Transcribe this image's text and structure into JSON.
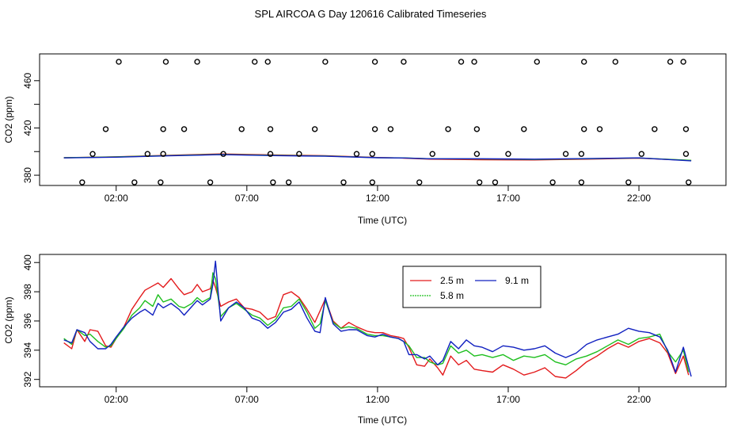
{
  "title": "SPL AIRCOA G  Day 120616  Calibrated Timeseries",
  "chart_data": [
    {
      "type": "scatter",
      "name": "top-panel",
      "xlabel": "Time (UTC)",
      "ylabel": "CO2 (ppm)",
      "xlim": [
        -0.9,
        25.3
      ],
      "ylim": [
        372,
        482
      ],
      "xticks": [
        2,
        7,
        12,
        17,
        22
      ],
      "xtick_labels": [
        "02:00",
        "07:00",
        "12:00",
        "17:00",
        "22:00"
      ],
      "yticks": [
        380,
        420,
        460
      ],
      "yticks_minor": [
        400,
        440
      ],
      "ytick_labels": [
        "380",
        "420",
        "460"
      ],
      "flag_points": [
        {
          "x": 0.7,
          "y": 374
        },
        {
          "x": 1.1,
          "y": 398
        },
        {
          "x": 1.6,
          "y": 419
        },
        {
          "x": 2.1,
          "y": 476
        },
        {
          "x": 2.7,
          "y": 374
        },
        {
          "x": 3.2,
          "y": 398
        },
        {
          "x": 3.7,
          "y": 374
        },
        {
          "x": 3.8,
          "y": 419
        },
        {
          "x": 3.9,
          "y": 476
        },
        {
          "x": 3.8,
          "y": 398
        },
        {
          "x": 4.6,
          "y": 419
        },
        {
          "x": 5.1,
          "y": 476
        },
        {
          "x": 5.6,
          "y": 374
        },
        {
          "x": 6.1,
          "y": 398
        },
        {
          "x": 6.8,
          "y": 419
        },
        {
          "x": 7.3,
          "y": 476
        },
        {
          "x": 7.8,
          "y": 476
        },
        {
          "x": 7.9,
          "y": 419
        },
        {
          "x": 7.9,
          "y": 398
        },
        {
          "x": 8.0,
          "y": 374
        },
        {
          "x": 8.6,
          "y": 374
        },
        {
          "x": 9.0,
          "y": 398
        },
        {
          "x": 9.6,
          "y": 419
        },
        {
          "x": 10.0,
          "y": 476
        },
        {
          "x": 10.7,
          "y": 374
        },
        {
          "x": 11.2,
          "y": 398
        },
        {
          "x": 11.8,
          "y": 374
        },
        {
          "x": 11.8,
          "y": 398
        },
        {
          "x": 11.9,
          "y": 419
        },
        {
          "x": 11.9,
          "y": 476
        },
        {
          "x": 12.5,
          "y": 419
        },
        {
          "x": 13.0,
          "y": 476
        },
        {
          "x": 13.6,
          "y": 374
        },
        {
          "x": 14.1,
          "y": 398
        },
        {
          "x": 14.7,
          "y": 419
        },
        {
          "x": 15.2,
          "y": 476
        },
        {
          "x": 15.7,
          "y": 476
        },
        {
          "x": 15.8,
          "y": 419
        },
        {
          "x": 15.8,
          "y": 398
        },
        {
          "x": 15.9,
          "y": 374
        },
        {
          "x": 16.5,
          "y": 374
        },
        {
          "x": 17.0,
          "y": 398
        },
        {
          "x": 17.6,
          "y": 419
        },
        {
          "x": 18.1,
          "y": 476
        },
        {
          "x": 18.7,
          "y": 374
        },
        {
          "x": 19.2,
          "y": 398
        },
        {
          "x": 19.8,
          "y": 374
        },
        {
          "x": 19.8,
          "y": 398
        },
        {
          "x": 19.9,
          "y": 419
        },
        {
          "x": 19.9,
          "y": 476
        },
        {
          "x": 20.5,
          "y": 419
        },
        {
          "x": 21.1,
          "y": 476
        },
        {
          "x": 21.6,
          "y": 374
        },
        {
          "x": 22.1,
          "y": 398
        },
        {
          "x": 22.6,
          "y": 419
        },
        {
          "x": 23.2,
          "y": 476
        },
        {
          "x": 23.7,
          "y": 476
        },
        {
          "x": 23.8,
          "y": 419
        },
        {
          "x": 23.8,
          "y": 398
        },
        {
          "x": 23.9,
          "y": 374
        }
      ],
      "series": [
        {
          "name": "2.5 m",
          "color": "#e31a1c",
          "x": [
            0,
            2,
            4,
            6,
            8,
            10,
            12,
            13,
            14,
            16,
            18,
            20,
            22,
            24
          ],
          "y": [
            394.8,
            395.6,
            396.9,
            398.0,
            397.2,
            396.5,
            395.0,
            394.5,
            393.6,
            393.1,
            392.9,
            393.6,
            394.5,
            392.5
          ]
        },
        {
          "name": "5.8 m",
          "color": "#1fbf1f",
          "x": [
            0,
            2,
            4,
            6,
            8,
            10,
            12,
            13,
            14,
            16,
            18,
            20,
            22,
            24
          ],
          "y": [
            394.8,
            395.5,
            396.6,
            397.6,
            396.8,
            396.3,
            394.9,
            394.7,
            393.9,
            393.7,
            393.3,
            393.9,
            394.6,
            392.6
          ]
        },
        {
          "name": "9.1 m",
          "color": "#1020c0",
          "x": [
            0,
            2,
            4,
            6,
            8,
            10,
            12,
            13,
            14,
            16,
            18,
            20,
            22,
            24
          ],
          "y": [
            394.7,
            395.3,
            396.4,
            397.4,
            396.6,
            396.1,
            394.8,
            394.6,
            393.9,
            393.9,
            393.6,
            394.1,
            394.7,
            392.2
          ]
        }
      ]
    },
    {
      "type": "line",
      "name": "bottom-panel",
      "xlabel": "Time (UTC)",
      "ylabel": "CO2 (ppm)",
      "xlim": [
        -0.9,
        25.3
      ],
      "ylim": [
        391.55,
        400.5
      ],
      "xticks": [
        2,
        7,
        12,
        17,
        22
      ],
      "xtick_labels": [
        "02:00",
        "07:00",
        "12:00",
        "17:00",
        "22:00"
      ],
      "yticks": [
        392,
        394,
        396,
        398,
        400
      ],
      "ytick_labels": [
        "392",
        "394",
        "396",
        "398",
        "400"
      ],
      "legend": {
        "position": "top-center",
        "entries": [
          {
            "label": "2.5 m",
            "color": "#e31a1c"
          },
          {
            "label": "9.1 m",
            "color": "#1020c0"
          },
          {
            "label": "5.8 m",
            "color": "#1fbf1f"
          }
        ]
      },
      "series": [
        {
          "name": "2.5 m",
          "color": "#e31a1c",
          "x": [
            0.0,
            0.3,
            0.5,
            0.8,
            1.0,
            1.3,
            1.6,
            1.8,
            2.0,
            2.3,
            2.6,
            2.9,
            3.1,
            3.4,
            3.6,
            3.8,
            4.1,
            4.4,
            4.6,
            4.9,
            5.1,
            5.3,
            5.6,
            5.7,
            5.8,
            6.0,
            6.3,
            6.6,
            6.9,
            7.2,
            7.5,
            7.8,
            8.1,
            8.4,
            8.7,
            9.0,
            9.3,
            9.6,
            9.8,
            10.0,
            10.3,
            10.6,
            10.9,
            11.2,
            11.6,
            11.9,
            12.2,
            12.5,
            12.8,
            13.0,
            13.2,
            13.5,
            13.8,
            14.0,
            14.3,
            14.5,
            14.8,
            15.1,
            15.4,
            15.7,
            16.0,
            16.4,
            16.8,
            17.2,
            17.6,
            18.0,
            18.4,
            18.8,
            19.2,
            19.6,
            20.0,
            20.4,
            20.8,
            21.2,
            21.6,
            22.0,
            22.4,
            22.8,
            23.1,
            23.4,
            23.7,
            23.9
          ],
          "y": [
            394.5,
            394.1,
            395.4,
            394.6,
            395.4,
            395.3,
            394.3,
            394.2,
            394.8,
            395.6,
            396.8,
            397.6,
            398.1,
            398.4,
            398.6,
            398.3,
            398.9,
            398.2,
            397.8,
            398.0,
            398.5,
            398.0,
            398.2,
            398.8,
            398.3,
            397.0,
            397.3,
            397.5,
            396.9,
            396.8,
            396.6,
            396.1,
            396.3,
            397.8,
            398.0,
            397.6,
            396.8,
            395.9,
            396.7,
            397.5,
            396.0,
            395.5,
            395.9,
            395.6,
            395.3,
            395.2,
            395.2,
            395.0,
            394.9,
            394.8,
            394.2,
            393.0,
            392.9,
            393.4,
            392.8,
            392.3,
            393.6,
            393.0,
            393.3,
            392.7,
            392.6,
            392.5,
            393.0,
            392.7,
            392.3,
            392.5,
            392.8,
            392.2,
            392.1,
            392.6,
            393.2,
            393.6,
            394.1,
            394.5,
            394.2,
            394.6,
            394.8,
            394.5,
            393.8,
            392.4,
            393.6,
            392.3
          ]
        },
        {
          "name": "5.8 m",
          "color": "#1fbf1f",
          "x": [
            0.0,
            0.3,
            0.5,
            0.8,
            1.0,
            1.3,
            1.6,
            1.8,
            2.0,
            2.3,
            2.6,
            2.9,
            3.1,
            3.4,
            3.6,
            3.8,
            4.1,
            4.4,
            4.6,
            4.9,
            5.1,
            5.3,
            5.6,
            5.7,
            5.8,
            6.0,
            6.3,
            6.6,
            6.9,
            7.2,
            7.5,
            7.8,
            8.1,
            8.4,
            8.7,
            9.0,
            9.3,
            9.6,
            9.8,
            10.0,
            10.3,
            10.6,
            10.9,
            11.2,
            11.6,
            11.9,
            12.2,
            12.5,
            12.8,
            13.0,
            13.2,
            13.5,
            13.8,
            14.0,
            14.3,
            14.5,
            14.8,
            15.1,
            15.4,
            15.7,
            16.0,
            16.4,
            16.8,
            17.2,
            17.6,
            18.0,
            18.4,
            18.8,
            19.2,
            19.6,
            20.0,
            20.4,
            20.8,
            21.2,
            21.6,
            22.0,
            22.4,
            22.8,
            23.1,
            23.4,
            23.7,
            23.9
          ],
          "y": [
            394.8,
            394.4,
            395.4,
            395.0,
            395.1,
            394.6,
            394.2,
            394.3,
            394.8,
            395.5,
            396.4,
            396.9,
            397.4,
            397.0,
            397.8,
            397.3,
            397.5,
            397.0,
            396.9,
            397.2,
            397.6,
            397.3,
            397.6,
            399.3,
            398.9,
            396.3,
            396.9,
            397.2,
            396.8,
            396.4,
            396.2,
            395.7,
            396.1,
            396.9,
            397.0,
            397.5,
            396.6,
            395.5,
            395.8,
            397.4,
            395.9,
            395.5,
            395.6,
            395.5,
            395.1,
            395.0,
            395.0,
            394.9,
            394.8,
            394.6,
            394.3,
            393.5,
            393.5,
            393.2,
            393.0,
            393.1,
            394.3,
            393.8,
            394.0,
            393.6,
            393.7,
            393.5,
            393.7,
            393.3,
            393.6,
            393.5,
            393.7,
            393.2,
            393.0,
            393.4,
            393.6,
            393.9,
            394.3,
            394.7,
            394.4,
            394.8,
            394.9,
            395.1,
            393.9,
            393.2,
            394.0,
            392.5
          ]
        },
        {
          "name": "9.1 m",
          "color": "#1020c0",
          "x": [
            0.0,
            0.3,
            0.5,
            0.8,
            1.0,
            1.3,
            1.6,
            1.8,
            2.0,
            2.3,
            2.6,
            2.9,
            3.1,
            3.4,
            3.6,
            3.8,
            4.1,
            4.4,
            4.6,
            4.9,
            5.1,
            5.3,
            5.6,
            5.7,
            5.8,
            6.0,
            6.3,
            6.6,
            6.9,
            7.2,
            7.5,
            7.8,
            8.1,
            8.4,
            8.7,
            9.0,
            9.3,
            9.6,
            9.8,
            10.0,
            10.3,
            10.6,
            10.9,
            11.2,
            11.6,
            11.9,
            12.2,
            12.5,
            12.8,
            13.0,
            13.2,
            13.5,
            13.8,
            14.0,
            14.3,
            14.5,
            14.8,
            15.1,
            15.4,
            15.7,
            16.0,
            16.4,
            16.8,
            17.2,
            17.6,
            18.0,
            18.4,
            18.8,
            19.2,
            19.6,
            20.0,
            20.4,
            20.8,
            21.2,
            21.6,
            22.0,
            22.4,
            22.8,
            23.1,
            23.4,
            23.7,
            24.0
          ],
          "y": [
            394.7,
            394.5,
            395.4,
            395.2,
            394.6,
            394.1,
            394.1,
            394.4,
            394.9,
            395.6,
            396.2,
            396.6,
            396.8,
            396.4,
            397.2,
            396.9,
            397.2,
            396.8,
            396.4,
            397.0,
            397.4,
            397.1,
            397.5,
            398.5,
            400.1,
            396.0,
            396.9,
            397.3,
            396.9,
            396.2,
            396.0,
            395.5,
            395.9,
            396.6,
            396.8,
            397.3,
            396.2,
            395.3,
            395.2,
            397.6,
            395.8,
            395.3,
            395.4,
            395.4,
            395.0,
            394.9,
            395.1,
            394.9,
            394.8,
            394.6,
            393.7,
            393.7,
            393.4,
            393.6,
            393.0,
            393.3,
            394.6,
            394.1,
            394.7,
            394.3,
            394.2,
            393.9,
            394.3,
            394.2,
            394.0,
            394.1,
            394.3,
            393.8,
            393.5,
            393.8,
            394.4,
            394.7,
            394.9,
            395.1,
            395.5,
            395.3,
            395.2,
            394.9,
            394.0,
            392.5,
            394.2,
            392.2
          ]
        }
      ]
    }
  ]
}
